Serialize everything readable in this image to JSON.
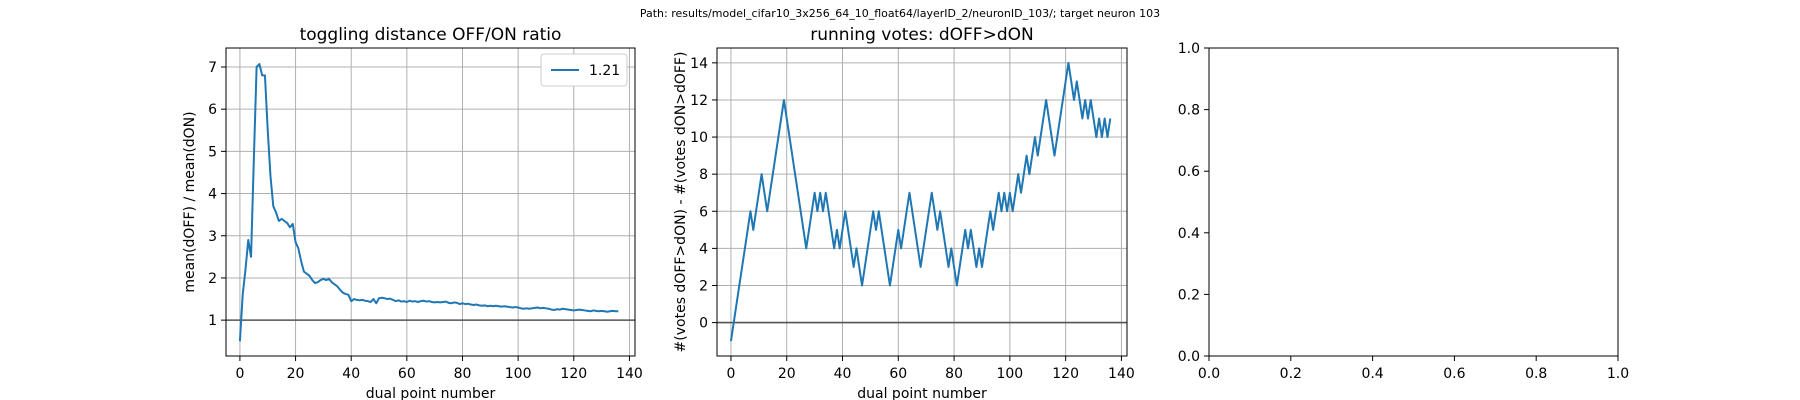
{
  "figure": {
    "suptitle": "Path: results/model_cifar10_3x256_64_10_float64/layerID_2/neuronID_103/; target neuron 103"
  },
  "chart_data": [
    {
      "type": "line",
      "title": "toggling distance OFF/ON ratio",
      "xlabel": "dual point number",
      "ylabel": "mean(dOFF) / mean(dON)",
      "xlim": [
        -5,
        142
      ],
      "ylim": [
        0.15,
        7.45
      ],
      "xticks": [
        0,
        20,
        40,
        60,
        80,
        100,
        120,
        140
      ],
      "yticks": [
        1,
        2,
        3,
        4,
        5,
        6,
        7
      ],
      "grid": true,
      "legend": {
        "position": "top-right",
        "entries": [
          "1.21"
        ]
      },
      "hline": 1,
      "series": [
        {
          "name": "1.21",
          "color": "#1f77b4",
          "values": [
            0.5,
            1.6,
            2.2,
            2.9,
            2.5,
            4.8,
            7.0,
            7.07,
            6.8,
            6.8,
            5.5,
            4.4,
            3.7,
            3.55,
            3.35,
            3.4,
            3.35,
            3.3,
            3.2,
            3.28,
            2.85,
            2.7,
            2.4,
            2.15,
            2.1,
            2.05,
            1.95,
            1.88,
            1.9,
            1.95,
            1.98,
            1.95,
            1.98,
            1.9,
            1.85,
            1.8,
            1.72,
            1.65,
            1.62,
            1.6,
            1.45,
            1.5,
            1.48,
            1.47,
            1.48,
            1.46,
            1.45,
            1.43,
            1.5,
            1.4,
            1.52,
            1.53,
            1.52,
            1.5,
            1.51,
            1.48,
            1.45,
            1.47,
            1.44,
            1.45,
            1.43,
            1.46,
            1.44,
            1.45,
            1.43,
            1.45,
            1.46,
            1.44,
            1.45,
            1.43,
            1.42,
            1.43,
            1.42,
            1.43,
            1.44,
            1.41,
            1.4,
            1.42,
            1.41,
            1.38,
            1.4,
            1.38,
            1.39,
            1.37,
            1.36,
            1.37,
            1.35,
            1.34,
            1.35,
            1.33,
            1.34,
            1.33,
            1.34,
            1.33,
            1.32,
            1.33,
            1.32,
            1.31,
            1.3,
            1.31,
            1.3,
            1.28,
            1.27,
            1.28,
            1.27,
            1.28,
            1.29,
            1.3,
            1.28,
            1.29,
            1.28,
            1.27,
            1.25,
            1.24,
            1.26,
            1.25,
            1.27,
            1.26,
            1.25,
            1.24,
            1.23,
            1.24,
            1.25,
            1.24,
            1.23,
            1.22,
            1.21,
            1.23,
            1.22,
            1.21,
            1.22,
            1.21,
            1.2,
            1.21,
            1.22,
            1.21,
            1.21
          ]
        }
      ]
    },
    {
      "type": "line",
      "title": "running votes: dOFF>dON",
      "xlabel": "dual point number",
      "ylabel": "#(votes dOFF>dON) - #(votes dON>dOFF)",
      "xlim": [
        -5,
        142
      ],
      "ylim": [
        -1.8,
        14.8
      ],
      "xticks": [
        0,
        20,
        40,
        60,
        80,
        100,
        120,
        140
      ],
      "yticks": [
        0,
        2,
        4,
        6,
        8,
        10,
        12,
        14
      ],
      "grid": true,
      "hline": 0,
      "series": [
        {
          "color": "#1f77b4",
          "values": [
            -1,
            0,
            1,
            2,
            3,
            4,
            5,
            6,
            5,
            6,
            7,
            8,
            7,
            6,
            7,
            8,
            9,
            10,
            11,
            12,
            11,
            10,
            9,
            8,
            7,
            6,
            5,
            4,
            5,
            6,
            7,
            6,
            7,
            6,
            7,
            6,
            5,
            4,
            5,
            4,
            5,
            6,
            5,
            4,
            3,
            4,
            3,
            2,
            3,
            4,
            5,
            6,
            5,
            6,
            5,
            4,
            3,
            2,
            3,
            4,
            5,
            4,
            5,
            6,
            7,
            6,
            5,
            4,
            3,
            4,
            5,
            6,
            7,
            6,
            5,
            6,
            5,
            4,
            3,
            4,
            3,
            2,
            3,
            4,
            5,
            4,
            5,
            4,
            3,
            4,
            3,
            4,
            5,
            6,
            5,
            6,
            7,
            6,
            7,
            6,
            7,
            6,
            7,
            8,
            7,
            8,
            9,
            8,
            9,
            10,
            9,
            10,
            11,
            12,
            11,
            10,
            9,
            10,
            11,
            12,
            13,
            14,
            13,
            12,
            13,
            12,
            11,
            12,
            11,
            12,
            11,
            10,
            11,
            10,
            11,
            10,
            11
          ]
        }
      ]
    },
    {
      "type": "line",
      "xlim": [
        0,
        1
      ],
      "ylim": [
        0,
        1
      ],
      "xticks": [
        "0.0",
        "0.2",
        "0.4",
        "0.6",
        "0.8",
        "1.0"
      ],
      "yticks": [
        "0.0",
        "0.2",
        "0.4",
        "0.6",
        "0.8",
        "1.0"
      ],
      "grid": false,
      "series": []
    }
  ]
}
